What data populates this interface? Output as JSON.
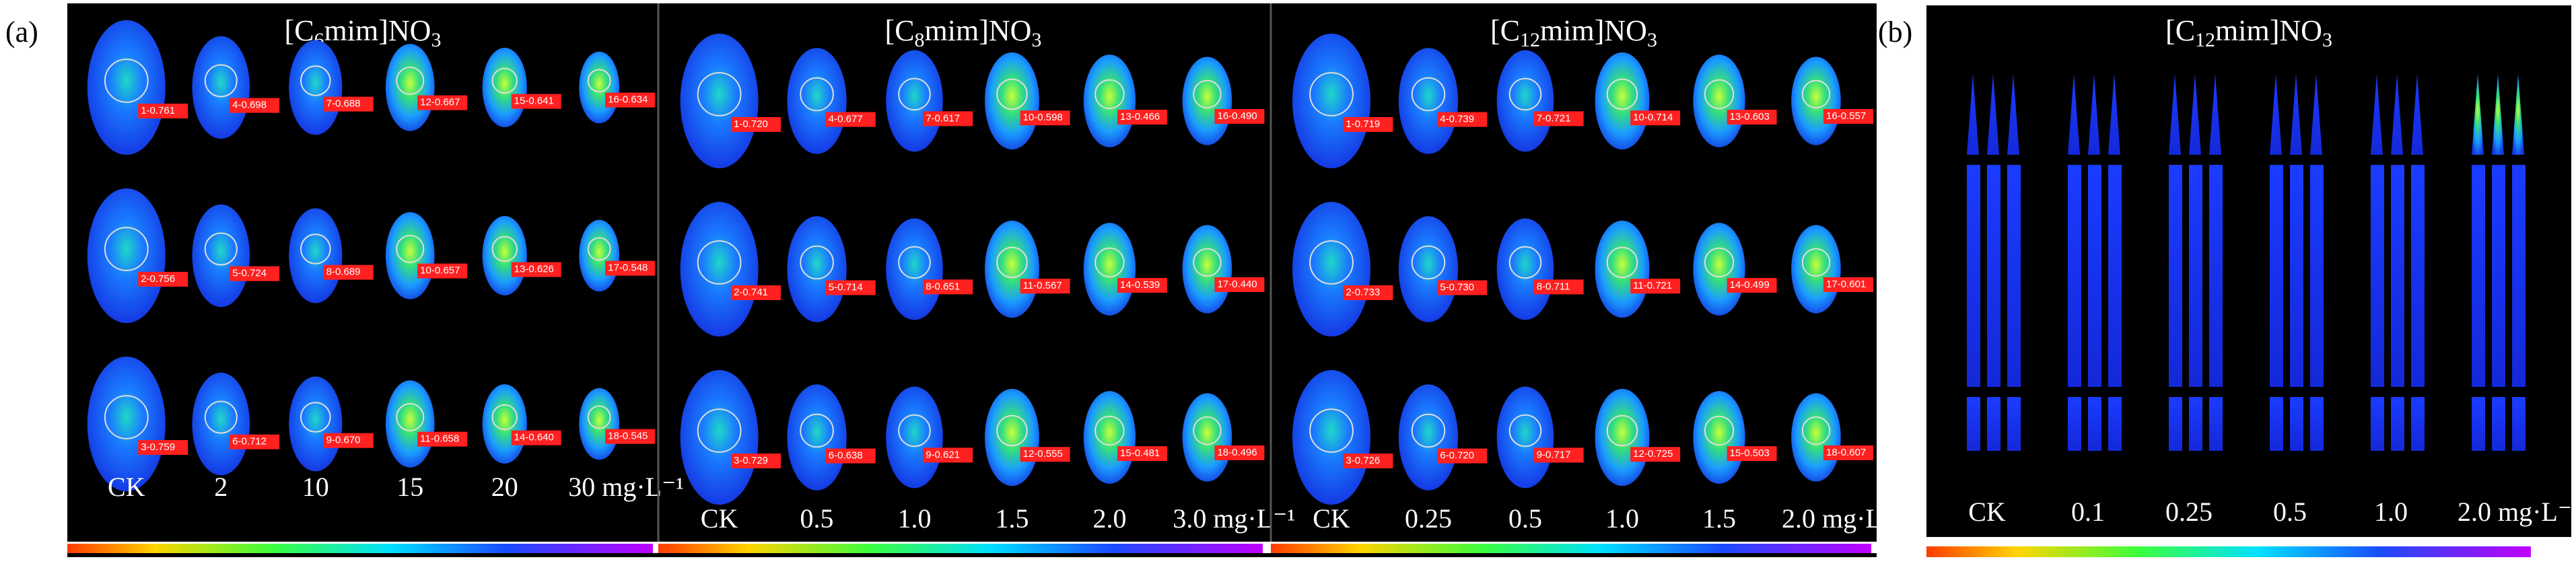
{
  "panel_a": {
    "label": "(a)",
    "subpanels": [
      {
        "title_parts": [
          "[C",
          "6",
          "mim]NO",
          "3"
        ],
        "tags": [
          [
            "1-0.761",
            "4-0.698",
            "7-0.688",
            "12-0.667",
            "15-0.641",
            "16-0.634"
          ],
          [
            "2-0.756",
            "5-0.724",
            "8-0.689",
            "10-0.657",
            "13-0.626",
            "17-0.548"
          ],
          [
            "3-0.759",
            "6-0.712",
            "9-0.670",
            "11-0.658",
            "14-0.640",
            "18-0.545"
          ]
        ],
        "concentrations": [
          "CK",
          "2",
          "10",
          "15",
          "20",
          "30 mg·L⁻¹"
        ]
      },
      {
        "title_parts": [
          "[C",
          "8",
          "mim]NO",
          "3"
        ],
        "tags": [
          [
            "1-0.720",
            "4-0.677",
            "7-0.617",
            "10-0.598",
            "13-0.466",
            "16-0.490"
          ],
          [
            "2-0.741",
            "5-0.714",
            "8-0.651",
            "11-0.567",
            "14-0.539",
            "17-0.440"
          ],
          [
            "3-0.729",
            "6-0.638",
            "9-0.621",
            "12-0.555",
            "15-0.481",
            "18-0.496"
          ]
        ],
        "concentrations": [
          "CK",
          "0.5",
          "1.0",
          "1.5",
          "2.0",
          "3.0 mg·L⁻¹"
        ]
      },
      {
        "title_parts": [
          "[C",
          "12",
          "mim]NO",
          "3"
        ],
        "tags": [
          [
            "1-0.719",
            "4-0.739",
            "7-0.721",
            "10-0.714",
            "13-0.603",
            "16-0.557"
          ],
          [
            "2-0.733",
            "5-0.730",
            "8-0.711",
            "11-0.721",
            "14-0.499",
            "17-0.601"
          ],
          [
            "3-0.726",
            "6-0.720",
            "9-0.717",
            "12-0.725",
            "15-0.503",
            "18-0.607"
          ]
        ],
        "concentrations": [
          "CK",
          "0.25",
          "0.5",
          "1.0",
          "1.5",
          "2.0 mg·L⁻¹"
        ]
      }
    ]
  },
  "panel_b": {
    "label": "(b)",
    "title_parts": [
      "[C",
      "12",
      "mim]NO",
      "3"
    ],
    "concentrations": [
      "CK",
      "0.1",
      "0.25",
      "0.5",
      "1.0",
      "2.0 mg·L⁻¹"
    ]
  }
}
